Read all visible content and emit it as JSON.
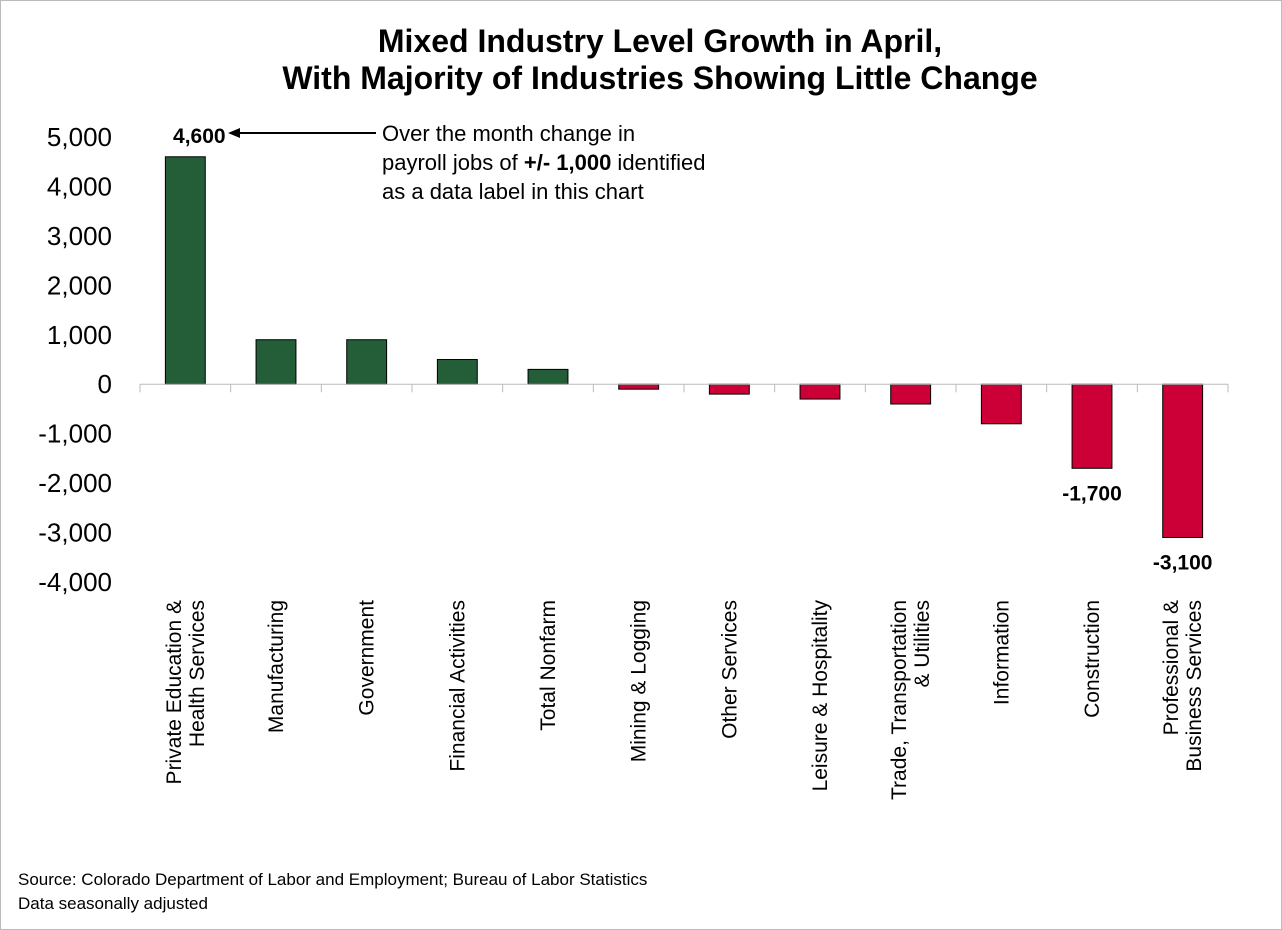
{
  "chart_data": {
    "type": "bar",
    "title": "Mixed Industry Level Growth in April,\nWith Majority of Industries Showing Little Change",
    "categories": [
      "Private Education &\nHealth Services",
      "Manufacturing",
      "Government",
      "Financial Activities",
      "Total Nonfarm",
      "Mining & Logging",
      "Other Services",
      "Leisure & Hospitality",
      "Trade, Transportation\n& Utilities",
      "Information",
      "Construction",
      "Professional &\nBusiness Services"
    ],
    "values": [
      4600,
      900,
      900,
      500,
      300,
      -100,
      -200,
      -300,
      -400,
      -800,
      -1700,
      -3100
    ],
    "value_labels": [
      "4,600",
      null,
      null,
      null,
      null,
      null,
      null,
      null,
      null,
      null,
      "-1,700",
      "-3,100"
    ],
    "positive_color": "#245e38",
    "negative_color": "#cc0036",
    "ylim": [
      -4000,
      5000
    ],
    "yticks": [
      {
        "value": 5000,
        "label": "5,000"
      },
      {
        "value": 4000,
        "label": "4,000"
      },
      {
        "value": 3000,
        "label": "3,000"
      },
      {
        "value": 2000,
        "label": "2,000"
      },
      {
        "value": 1000,
        "label": "1,000"
      },
      0,
      {
        "value": -1000,
        "label": "-1,000"
      },
      {
        "value": -2000,
        "label": "-2,000"
      },
      {
        "value": -3000,
        "label": "-3,000"
      },
      {
        "value": -4000,
        "label": "-4,000"
      }
    ],
    "grid": false,
    "annotation": [
      "Over the month change in",
      "payroll jobs of ",
      "+/- 1,000",
      " identified",
      "as a data label in this chart"
    ],
    "source": [
      "Source: Colorado Department of Labor and Employment; Bureau of Labor Statistics",
      "Data seasonally adjusted"
    ]
  }
}
